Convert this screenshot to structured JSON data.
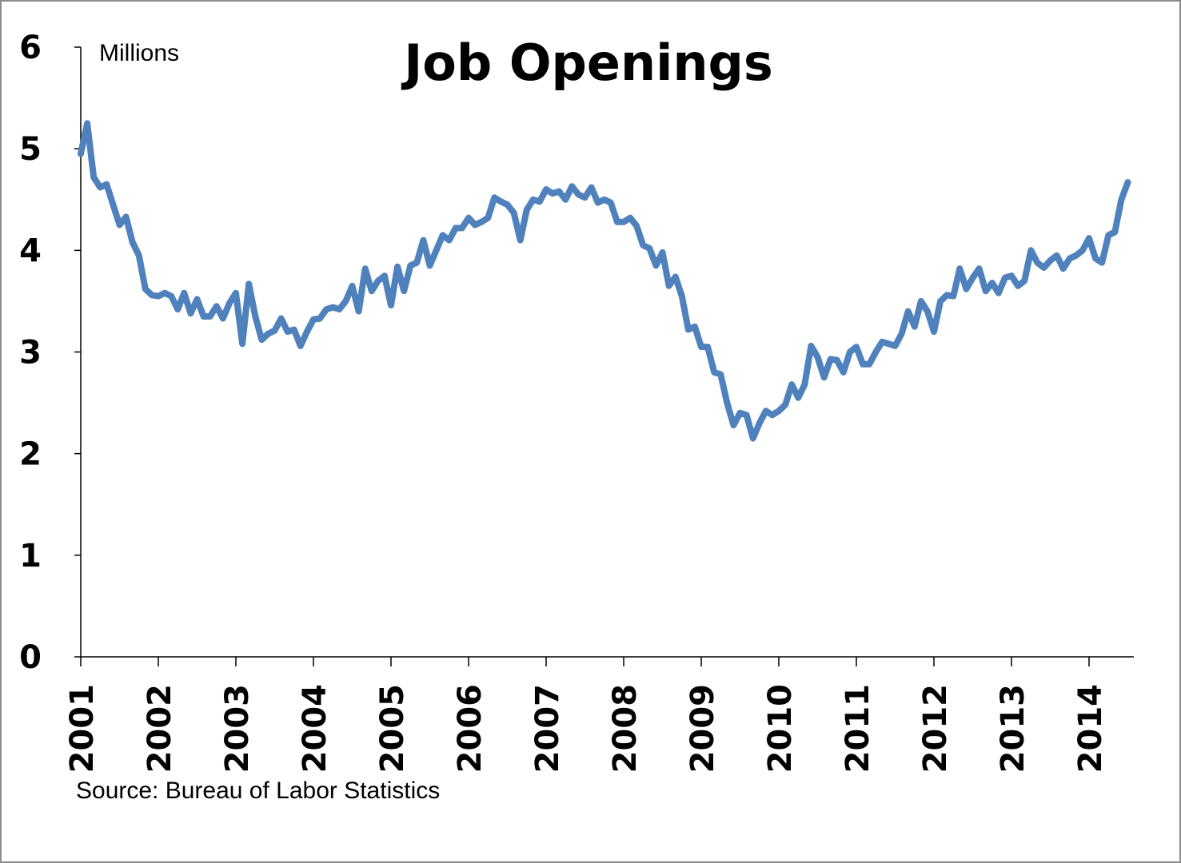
{
  "chart_data": {
    "type": "line",
    "title": "Job Openings",
    "ylabel": "Millions",
    "source": "Source:  Bureau of Labor Statistics",
    "ylim": [
      0,
      6
    ],
    "xlim": [
      "2001-01",
      "2014-07"
    ],
    "y_ticks": [
      "0",
      "1",
      "2",
      "3",
      "4",
      "5",
      "6"
    ],
    "x_ticks": [
      "2001",
      "2002",
      "2003",
      "2004",
      "2005",
      "2006",
      "2007",
      "2008",
      "2009",
      "2010",
      "2011",
      "2012",
      "2013",
      "2014"
    ],
    "grid": false,
    "legend": "none",
    "series": [
      {
        "color": "#4f81bd",
        "values": [
          [
            "2001-01",
            4.95
          ],
          [
            "2001-02",
            5.25
          ],
          [
            "2001-03",
            4.72
          ],
          [
            "2001-04",
            4.62
          ],
          [
            "2001-05",
            4.65
          ],
          [
            "2001-06",
            4.45
          ],
          [
            "2001-07",
            4.25
          ],
          [
            "2001-08",
            4.33
          ],
          [
            "2001-09",
            4.08
          ],
          [
            "2001-10",
            3.95
          ],
          [
            "2001-11",
            3.62
          ],
          [
            "2001-12",
            3.56
          ],
          [
            "2002-01",
            3.55
          ],
          [
            "2002-02",
            3.58
          ],
          [
            "2002-03",
            3.55
          ],
          [
            "2002-04",
            3.42
          ],
          [
            "2002-05",
            3.58
          ],
          [
            "2002-06",
            3.38
          ],
          [
            "2002-07",
            3.52
          ],
          [
            "2002-08",
            3.35
          ],
          [
            "2002-09",
            3.35
          ],
          [
            "2002-10",
            3.45
          ],
          [
            "2002-11",
            3.33
          ],
          [
            "2002-12",
            3.48
          ],
          [
            "2003-01",
            3.58
          ],
          [
            "2003-02",
            3.08
          ],
          [
            "2003-03",
            3.67
          ],
          [
            "2003-04",
            3.35
          ],
          [
            "2003-05",
            3.12
          ],
          [
            "2003-06",
            3.18
          ],
          [
            "2003-07",
            3.21
          ],
          [
            "2003-08",
            3.33
          ],
          [
            "2003-09",
            3.2
          ],
          [
            "2003-10",
            3.22
          ],
          [
            "2003-11",
            3.06
          ],
          [
            "2003-12",
            3.2
          ],
          [
            "2004-01",
            3.32
          ],
          [
            "2004-02",
            3.33
          ],
          [
            "2004-03",
            3.42
          ],
          [
            "2004-04",
            3.44
          ],
          [
            "2004-05",
            3.42
          ],
          [
            "2004-06",
            3.5
          ],
          [
            "2004-07",
            3.65
          ],
          [
            "2004-08",
            3.4
          ],
          [
            "2004-09",
            3.82
          ],
          [
            "2004-10",
            3.6
          ],
          [
            "2004-11",
            3.7
          ],
          [
            "2004-12",
            3.75
          ],
          [
            "2005-01",
            3.46
          ],
          [
            "2005-02",
            3.84
          ],
          [
            "2005-03",
            3.6
          ],
          [
            "2005-04",
            3.85
          ],
          [
            "2005-05",
            3.88
          ],
          [
            "2005-06",
            4.1
          ],
          [
            "2005-07",
            3.85
          ],
          [
            "2005-08",
            4.0
          ],
          [
            "2005-09",
            4.15
          ],
          [
            "2005-10",
            4.1
          ],
          [
            "2005-11",
            4.22
          ],
          [
            "2005-12",
            4.22
          ],
          [
            "2006-01",
            4.32
          ],
          [
            "2006-02",
            4.25
          ],
          [
            "2006-03",
            4.28
          ],
          [
            "2006-04",
            4.32
          ],
          [
            "2006-05",
            4.52
          ],
          [
            "2006-06",
            4.48
          ],
          [
            "2006-07",
            4.45
          ],
          [
            "2006-08",
            4.37
          ],
          [
            "2006-09",
            4.1
          ],
          [
            "2006-10",
            4.4
          ],
          [
            "2006-11",
            4.5
          ],
          [
            "2006-12",
            4.48
          ],
          [
            "2007-01",
            4.6
          ],
          [
            "2007-02",
            4.56
          ],
          [
            "2007-03",
            4.58
          ],
          [
            "2007-04",
            4.5
          ],
          [
            "2007-05",
            4.63
          ],
          [
            "2007-06",
            4.55
          ],
          [
            "2007-07",
            4.52
          ],
          [
            "2007-08",
            4.62
          ],
          [
            "2007-09",
            4.47
          ],
          [
            "2007-10",
            4.5
          ],
          [
            "2007-11",
            4.47
          ],
          [
            "2007-12",
            4.28
          ],
          [
            "2008-01",
            4.28
          ],
          [
            "2008-02",
            4.32
          ],
          [
            "2008-03",
            4.24
          ],
          [
            "2008-04",
            4.05
          ],
          [
            "2008-05",
            4.02
          ],
          [
            "2008-06",
            3.85
          ],
          [
            "2008-07",
            3.98
          ],
          [
            "2008-08",
            3.65
          ],
          [
            "2008-09",
            3.74
          ],
          [
            "2008-10",
            3.55
          ],
          [
            "2008-11",
            3.22
          ],
          [
            "2008-12",
            3.25
          ],
          [
            "2009-01",
            3.05
          ],
          [
            "2009-02",
            3.05
          ],
          [
            "2009-03",
            2.8
          ],
          [
            "2009-04",
            2.78
          ],
          [
            "2009-05",
            2.5
          ],
          [
            "2009-06",
            2.28
          ],
          [
            "2009-07",
            2.4
          ],
          [
            "2009-08",
            2.38
          ],
          [
            "2009-09",
            2.15
          ],
          [
            "2009-10",
            2.3
          ],
          [
            "2009-11",
            2.42
          ],
          [
            "2009-12",
            2.38
          ],
          [
            "2010-01",
            2.42
          ],
          [
            "2010-02",
            2.48
          ],
          [
            "2010-03",
            2.68
          ],
          [
            "2010-04",
            2.55
          ],
          [
            "2010-05",
            2.68
          ],
          [
            "2010-06",
            3.06
          ],
          [
            "2010-07",
            2.95
          ],
          [
            "2010-08",
            2.75
          ],
          [
            "2010-09",
            2.93
          ],
          [
            "2010-10",
            2.92
          ],
          [
            "2010-11",
            2.8
          ],
          [
            "2010-12",
            3.0
          ],
          [
            "2011-01",
            3.05
          ],
          [
            "2011-02",
            2.88
          ],
          [
            "2011-03",
            2.88
          ],
          [
            "2011-04",
            3.0
          ],
          [
            "2011-05",
            3.1
          ],
          [
            "2011-06",
            3.08
          ],
          [
            "2011-07",
            3.06
          ],
          [
            "2011-08",
            3.18
          ],
          [
            "2011-09",
            3.4
          ],
          [
            "2011-10",
            3.25
          ],
          [
            "2011-11",
            3.5
          ],
          [
            "2011-12",
            3.4
          ],
          [
            "2012-01",
            3.2
          ],
          [
            "2012-02",
            3.5
          ],
          [
            "2012-03",
            3.56
          ],
          [
            "2012-04",
            3.55
          ],
          [
            "2012-05",
            3.82
          ],
          [
            "2012-06",
            3.62
          ],
          [
            "2012-07",
            3.73
          ],
          [
            "2012-08",
            3.82
          ],
          [
            "2012-09",
            3.6
          ],
          [
            "2012-10",
            3.68
          ],
          [
            "2012-11",
            3.58
          ],
          [
            "2012-12",
            3.73
          ],
          [
            "2013-01",
            3.75
          ],
          [
            "2013-02",
            3.65
          ],
          [
            "2013-03",
            3.7
          ],
          [
            "2013-04",
            4.0
          ],
          [
            "2013-05",
            3.88
          ],
          [
            "2013-06",
            3.83
          ],
          [
            "2013-07",
            3.9
          ],
          [
            "2013-08",
            3.95
          ],
          [
            "2013-09",
            3.82
          ],
          [
            "2013-10",
            3.92
          ],
          [
            "2013-11",
            3.95
          ],
          [
            "2013-12",
            4.0
          ],
          [
            "2014-01",
            4.12
          ],
          [
            "2014-02",
            3.92
          ],
          [
            "2014-03",
            3.88
          ],
          [
            "2014-04",
            4.15
          ],
          [
            "2014-05",
            4.18
          ],
          [
            "2014-06",
            4.5
          ],
          [
            "2014-07",
            4.67
          ]
        ]
      }
    ]
  }
}
